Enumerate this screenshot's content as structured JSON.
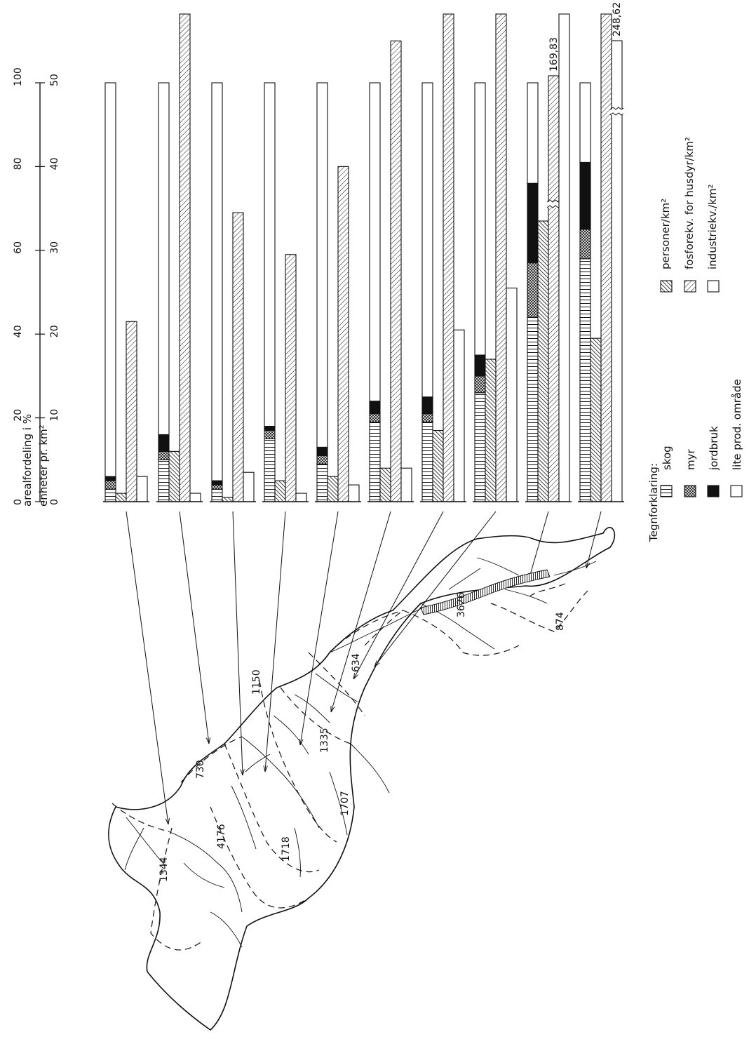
{
  "scale": {
    "title": "arealfordeling i %",
    "title2": "enheter pr. km²",
    "pct_ticks": [
      "0",
      "20",
      "40",
      "60",
      "80",
      "100"
    ],
    "unit_ticks": [
      "0",
      "10",
      "20",
      "30",
      "40",
      "50"
    ]
  },
  "map_labels": [
    {
      "text": "1344"
    },
    {
      "text": "730"
    },
    {
      "text": "4176"
    },
    {
      "text": "1718"
    },
    {
      "text": "1150"
    },
    {
      "text": "634"
    },
    {
      "text": "1335"
    },
    {
      "text": "1707"
    },
    {
      "text": "3626"
    },
    {
      "text": "874"
    }
  ],
  "legend": {
    "title": "Tegnforklaring:",
    "area_items": [
      "skog",
      "myr",
      "jordbruk",
      "lite prod. område"
    ],
    "unit_items": [
      "personer/km²",
      "fosforekv. for husdyr/km²",
      "industriekv./km²"
    ]
  },
  "colors": {
    "ink": "#111111",
    "paper": "#ffffff"
  },
  "chart_data": {
    "type": "bar",
    "orientation": "rotated 90° (bars grow upward on the page)",
    "axes": {
      "percent": {
        "label": "arealfordeling i %",
        "range": [
          0,
          100
        ]
      },
      "units": {
        "label": "enheter pr. km²",
        "range": [
          0,
          50
        ]
      }
    },
    "area_categories": [
      "skog",
      "myr",
      "jordbruk",
      "lite prod. område"
    ],
    "unit_series_names": [
      "personer/km²",
      "fosforekv. for husdyr/km²",
      "industriekv./km²"
    ],
    "groups": [
      {
        "area_pct": [
          3,
          2,
          1,
          94
        ],
        "personer": 1,
        "fosforekv": 21.5,
        "industri": 3
      },
      {
        "area_pct": [
          10,
          2,
          4,
          84
        ],
        "personer": 6,
        "fosforekv": 74,
        "industri": 1
      },
      {
        "area_pct": [
          3,
          1,
          1,
          95
        ],
        "personer": 0.5,
        "fosforekv": 34.5,
        "industri": 3.5
      },
      {
        "area_pct": [
          15,
          2,
          1,
          82
        ],
        "personer": 2.5,
        "fosforekv": 29.5,
        "industri": 1
      },
      {
        "area_pct": [
          9,
          2,
          2,
          87
        ],
        "personer": 3,
        "fosforekv": 40,
        "industri": 2
      },
      {
        "area_pct": [
          19,
          2,
          3,
          76
        ],
        "personer": 4,
        "fosforekv": 55,
        "industri": 4
      },
      {
        "area_pct": [
          19,
          2,
          4,
          75
        ],
        "personer": 8.5,
        "fosforekv": 117,
        "industri": 20.5
      },
      {
        "area_pct": [
          26,
          4,
          5,
          65
        ],
        "personer": 17,
        "fosforekv": 96,
        "industri": 25.5
      },
      {
        "area_pct": [
          44,
          13,
          19,
          24
        ],
        "personer": 33.5,
        "fosforekv": 169.83,
        "fosforekv_label": "169,83",
        "industri": 65,
        "fosforekv_break": true
      },
      {
        "area_pct": [
          58,
          7,
          16,
          19
        ],
        "personer": 19.5,
        "fosforekv": 110,
        "industri": 248.62,
        "industri_label": "248,62",
        "industri_break": true
      }
    ]
  }
}
